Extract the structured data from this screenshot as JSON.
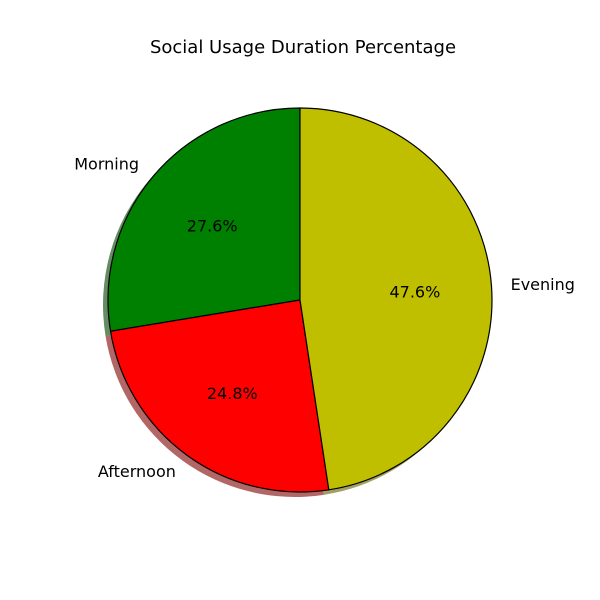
{
  "chart_data": {
    "type": "pie",
    "title": "Social Usage Duration Percentage",
    "start_angle_deg": 90,
    "direction": "counterclockwise",
    "shadow": true,
    "slices": [
      {
        "label": "Morning",
        "value": 27.6,
        "pct_text": "27.6%",
        "color": "#008000"
      },
      {
        "label": "Afternoon",
        "value": 24.8,
        "pct_text": "24.8%",
        "color": "#ff0000"
      },
      {
        "label": "Evening",
        "value": 47.6,
        "pct_text": "47.6%",
        "color": "#bfbf00"
      }
    ],
    "edge_color": "#000000"
  }
}
